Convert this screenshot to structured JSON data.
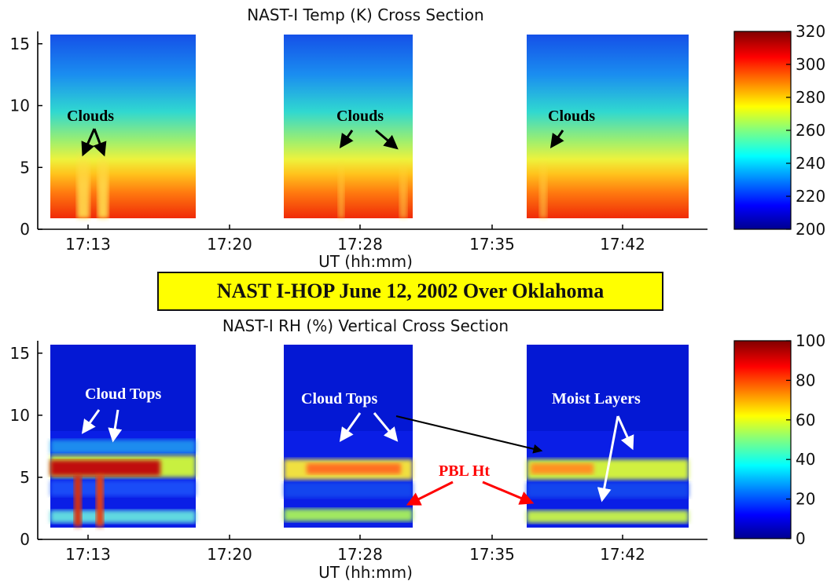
{
  "banner": "NAST I-HOP June 12, 2002 Over Oklahoma",
  "chart_data": [
    {
      "type": "heatmap",
      "title": "NAST-I Temp (K) Cross Section",
      "xlabel": "UT (hh:mm)",
      "ylabel": "",
      "x_ticks": [
        "17:13",
        "17:20",
        "17:28",
        "17:35",
        "17:42"
      ],
      "y_ticks": [
        0,
        5,
        10,
        15
      ],
      "ylim": [
        0,
        16
      ],
      "colorbar": {
        "min": 200,
        "max": 320,
        "ticks": [
          200,
          220,
          240,
          260,
          280,
          300,
          320
        ]
      },
      "segments": [
        {
          "x_range": [
            "17:10",
            "17:17"
          ]
        },
        {
          "x_range": [
            "17:24",
            "17:31"
          ]
        },
        {
          "x_range": [
            "17:37",
            "17:46"
          ]
        }
      ],
      "series": [
        {
          "height_km": [
            1,
            3,
            5,
            7,
            9,
            11,
            13,
            15.5
          ],
          "value_k": [
            300,
            290,
            278,
            266,
            254,
            240,
            228,
            218
          ]
        }
      ],
      "annotations": [
        {
          "text": "Clouds",
          "color": "#000000"
        },
        {
          "text": "Clouds",
          "color": "#000000"
        },
        {
          "text": "Clouds",
          "color": "#000000"
        }
      ]
    },
    {
      "type": "heatmap",
      "title": "NAST-I RH (%) Vertical Cross Section",
      "xlabel": "UT (hh:mm)",
      "ylabel": "",
      "x_ticks": [
        "17:13",
        "17:20",
        "17:28",
        "17:35",
        "17:42"
      ],
      "y_ticks": [
        0,
        5,
        10,
        15
      ],
      "ylim": [
        0,
        16
      ],
      "colorbar": {
        "min": 0,
        "max": 100,
        "ticks": [
          0,
          20,
          40,
          60,
          80,
          100
        ]
      },
      "segments": [
        {
          "x_range": [
            "17:10",
            "17:17"
          ]
        },
        {
          "x_range": [
            "17:24",
            "17:31"
          ]
        },
        {
          "x_range": [
            "17:37",
            "17:46"
          ]
        }
      ],
      "series": [
        {
          "height_km": [
            1.5,
            2.5,
            4.5,
            6,
            7.5,
            10,
            14
          ],
          "value_pct": [
            55,
            25,
            20,
            75,
            25,
            8,
            5
          ]
        }
      ],
      "annotations": [
        {
          "text": "Cloud Tops",
          "color": "#ffffff"
        },
        {
          "text": "Cloud Tops",
          "color": "#ffffff"
        },
        {
          "text": "Moist Layers",
          "color": "#ffffff"
        },
        {
          "text": "PBL Ht",
          "color": "#ff0000"
        }
      ]
    }
  ]
}
